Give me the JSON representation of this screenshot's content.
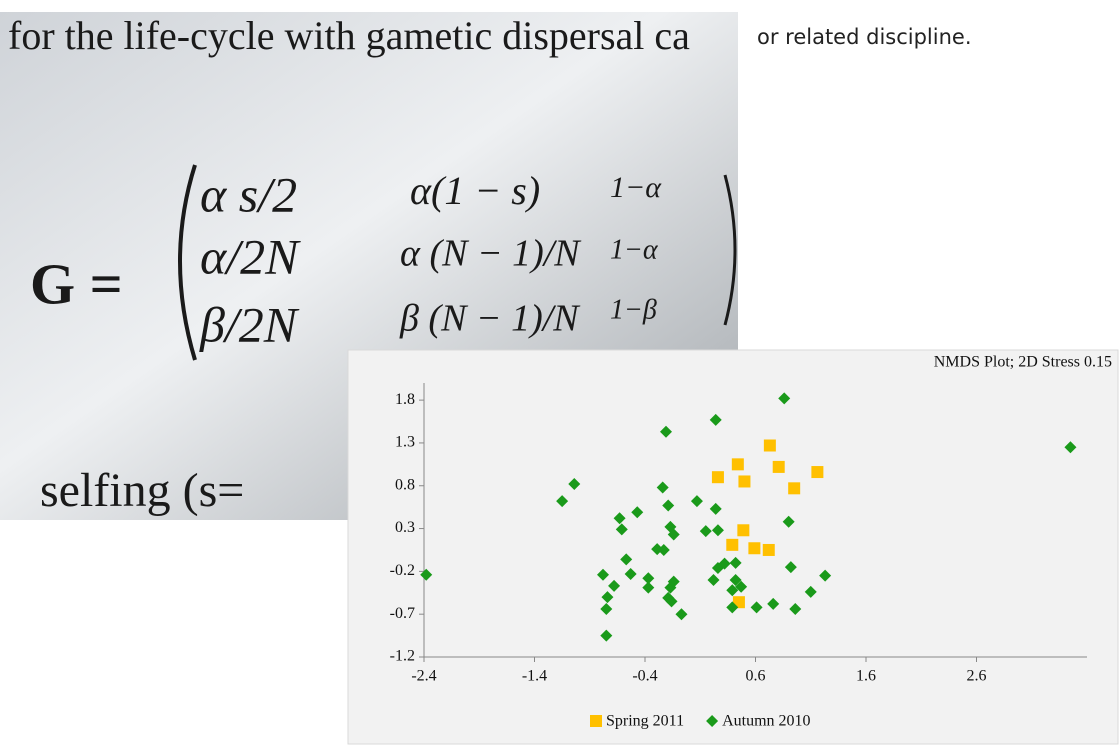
{
  "caption": "or related discipline.",
  "photo": {
    "texts": [
      "for the life-cycle with gametic dispersal ca",
      "G =",
      "α s/2",
      "α(1 − s)",
      "1−α",
      "α/2N",
      "α (N − 1)/N",
      "1−α",
      "β/2N",
      "β (N − 1)/N",
      "1−β",
      "selfing (s="
    ]
  },
  "chart_data": {
    "type": "scatter",
    "title": "NMDS Plot; 2D Stress 0.15",
    "xlim": [
      -2.4,
      3.6
    ],
    "ylim": [
      -1.2,
      2.0
    ],
    "xticks": [
      -2.4,
      -1.4,
      -0.4,
      0.6,
      1.6,
      2.6
    ],
    "yticks": [
      -1.2,
      -0.7,
      -0.2,
      0.3,
      0.8,
      1.3,
      1.8
    ],
    "grid": false,
    "legend": "bottom",
    "series": [
      {
        "name": "Spring 2011",
        "color": "#ffc000",
        "marker": "square",
        "x": [
          0.26,
          0.44,
          0.5,
          0.73,
          0.81,
          0.95,
          1.16,
          0.49,
          0.39,
          0.59,
          0.72,
          0.45
        ],
        "values": [
          0.9,
          1.05,
          0.85,
          1.27,
          1.02,
          0.77,
          0.96,
          0.28,
          0.11,
          0.07,
          0.05,
          -0.56
        ]
      },
      {
        "name": "Autumn 2010",
        "color": "#1a9a1a",
        "marker": "diamond",
        "x": [
          -2.38,
          -1.15,
          -1.04,
          -0.21,
          0.24,
          0.86,
          3.45,
          -0.24,
          -0.47,
          -0.63,
          -0.61,
          -0.19,
          -0.17,
          -0.14,
          0.07,
          0.15,
          0.24,
          0.26,
          0.9,
          -0.29,
          -0.23,
          -0.57,
          -0.53,
          -0.78,
          -0.68,
          -0.37,
          -0.37,
          -0.74,
          -0.75,
          -0.75,
          -0.17,
          -0.14,
          -0.19,
          -0.16,
          -0.07,
          0.22,
          0.26,
          0.32,
          0.42,
          0.42,
          0.39,
          0.47,
          0.39,
          0.61,
          0.76,
          0.92,
          0.96,
          1.1,
          1.23
        ],
        "values": [
          -0.24,
          0.62,
          0.82,
          1.43,
          1.57,
          1.82,
          1.25,
          0.78,
          0.49,
          0.42,
          0.29,
          0.57,
          0.32,
          0.23,
          0.62,
          0.27,
          0.53,
          0.28,
          0.38,
          0.06,
          0.05,
          -0.06,
          -0.23,
          -0.24,
          -0.37,
          -0.28,
          -0.39,
          -0.5,
          -0.64,
          -0.95,
          -0.39,
          -0.32,
          -0.51,
          -0.55,
          -0.7,
          -0.3,
          -0.16,
          -0.11,
          -0.1,
          -0.3,
          -0.42,
          -0.38,
          -0.62,
          -0.62,
          -0.58,
          -0.15,
          -0.64,
          -0.44,
          -0.25
        ]
      }
    ]
  }
}
